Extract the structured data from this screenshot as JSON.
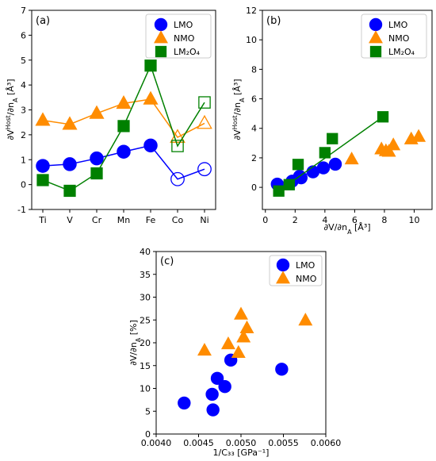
{
  "colors": {
    "LMO": "#0000ff",
    "NMO": "#ff8c00",
    "LM2O4": "#008000"
  },
  "chart_data": [
    {
      "panel": "(a)",
      "type": "line",
      "xlabel": "",
      "ylabel": "∂V^Host/∂n_A [Å³]",
      "categories": [
        "Ti",
        "V",
        "Cr",
        "Mn",
        "Fe",
        "Co",
        "Ni"
      ],
      "ylim": [
        -1,
        7
      ],
      "yticks": [
        -1,
        0,
        1,
        2,
        3,
        4,
        5,
        6,
        7
      ],
      "legend_position": "top-right",
      "series": [
        {
          "name": "LMO",
          "marker": "circle",
          "values": [
            0.75,
            0.82,
            1.05,
            1.32,
            1.57,
            0.22,
            0.62
          ],
          "filled": [
            true,
            true,
            true,
            true,
            true,
            false,
            false
          ]
        },
        {
          "name": "NMO",
          "marker": "triangle",
          "values": [
            2.58,
            2.42,
            2.86,
            3.26,
            3.43,
            1.9,
            2.46
          ],
          "filled": [
            true,
            true,
            true,
            true,
            true,
            false,
            false
          ]
        },
        {
          "name": "LM₂O₄",
          "marker": "square",
          "values": [
            0.18,
            -0.25,
            0.45,
            2.35,
            4.78,
            1.55,
            3.3
          ],
          "filled": [
            true,
            true,
            true,
            true,
            true,
            false,
            false
          ]
        }
      ]
    },
    {
      "panel": "(b)",
      "type": "scatter",
      "xlabel": "∂V/∂n_A [Å³]",
      "ylabel": "∂V^Host/∂n_A [Å³]",
      "xlim": [
        -0.2,
        11.2
      ],
      "xticks": [
        0,
        2,
        4,
        6,
        8,
        10
      ],
      "ylim": [
        -1.5,
        12
      ],
      "yticks": [
        0,
        2,
        4,
        6,
        8,
        10,
        12
      ],
      "legend_position": "top-right",
      "series": [
        {
          "name": "LMO",
          "marker": "circle",
          "x": [
            0.8,
            1.8,
            2.3,
            2.4,
            3.2,
            3.9,
            4.7
          ],
          "y": [
            0.22,
            0.42,
            0.75,
            0.65,
            1.05,
            1.32,
            1.57
          ],
          "fit": [
            [
              0.8,
              0.22
            ],
            [
              4.7,
              1.57
            ]
          ]
        },
        {
          "name": "NMO",
          "marker": "triangle",
          "x": [
            5.8,
            7.8,
            8.1,
            8.3,
            8.6,
            9.8,
            10.3
          ],
          "y": [
            1.9,
            2.58,
            2.46,
            2.42,
            2.86,
            3.26,
            3.43
          ],
          "fit": []
        },
        {
          "name": "LM₂O₄",
          "marker": "square",
          "x": [
            0.9,
            1.6,
            2.2,
            4.0,
            4.5,
            7.9
          ],
          "y": [
            -0.25,
            0.18,
            1.55,
            2.35,
            3.3,
            4.78
          ],
          "fit": [
            [
              0.9,
              -0.25
            ],
            [
              7.9,
              4.78
            ]
          ]
        }
      ]
    },
    {
      "panel": "(c)",
      "type": "scatter",
      "xlabel": "1/C₃₃ [GPa⁻¹]",
      "ylabel": "∂V/∂n_A [%]",
      "xlim": [
        0.004,
        0.006
      ],
      "xticks": [
        "0.0040",
        "0.0045",
        "0.0050",
        "0.0055",
        "0.0060"
      ],
      "ylim": [
        0,
        40
      ],
      "yticks": [
        0,
        5,
        10,
        15,
        20,
        25,
        30,
        35,
        40
      ],
      "legend_position": "top-left",
      "series": [
        {
          "name": "LMO",
          "marker": "circle",
          "x": [
            0.00433,
            0.00466,
            0.00467,
            0.00472,
            0.00481,
            0.00488,
            0.00548
          ],
          "y": [
            6.8,
            8.7,
            5.3,
            12.2,
            10.4,
            16.2,
            14.2
          ]
        },
        {
          "name": "NMO",
          "marker": "triangle",
          "x": [
            0.00457,
            0.00485,
            0.00497,
            0.005,
            0.00503,
            0.00507,
            0.00576
          ],
          "y": [
            18.3,
            19.7,
            17.8,
            26.2,
            21.2,
            23.2,
            24.9
          ]
        }
      ]
    }
  ]
}
